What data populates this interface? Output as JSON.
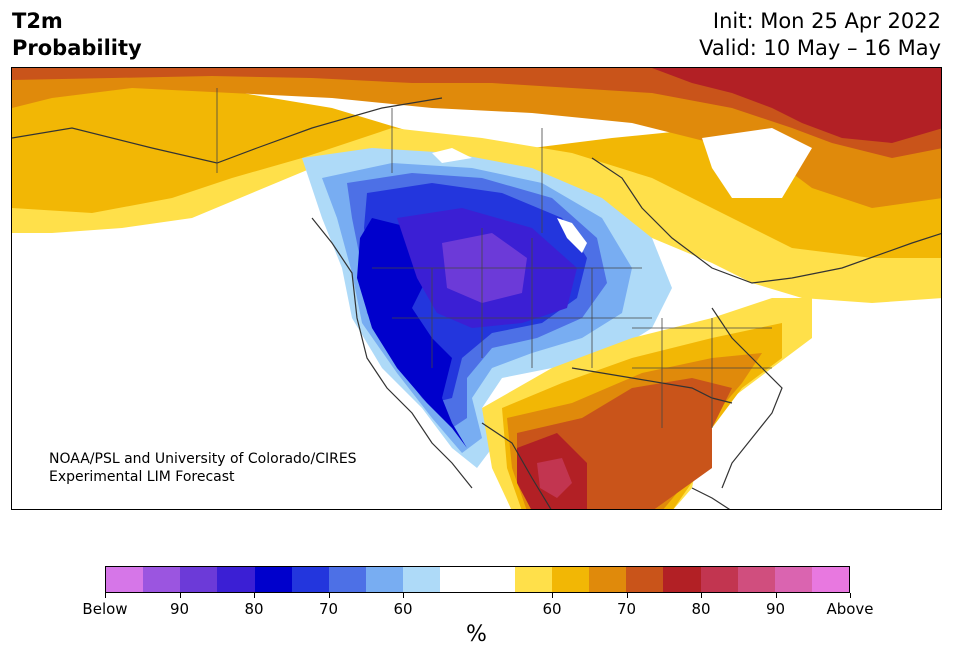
{
  "header": {
    "title_line1": "T2m",
    "title_line2": "Probability",
    "init": "Init: Mon 25 Apr 2022",
    "valid": "Valid: 10 May – 16 May"
  },
  "credit": {
    "line1": "NOAA/PSL and University of Colorado/CIRES",
    "line2": "Experimental LIM Forecast"
  },
  "colorbar": {
    "unit": "%",
    "colors": [
      "#d676e8",
      "#9b55e0",
      "#6c3ad8",
      "#3b1fd4",
      "#0000cc",
      "#2336dd",
      "#4d70e6",
      "#78adf2",
      "#aedaf8",
      "#ffffff",
      "#ffffff",
      "#ffe04a",
      "#f2b705",
      "#e08a0b",
      "#c9541a",
      "#b22025",
      "#c23550",
      "#d04e7e",
      "#da64b0",
      "#e878e0"
    ],
    "tick_labels": [
      "Below",
      "90",
      "80",
      "70",
      "60",
      "60",
      "70",
      "80",
      "90",
      "Above"
    ]
  },
  "map": {
    "colors": {
      "below_80": "#3b1fd4",
      "below_90": "#6c3ad8",
      "below_70": "#0000cc",
      "below_65": "#2336dd",
      "below_60": "#4d70e6",
      "below_55": "#78adf2",
      "below_50": "#aedaf8",
      "above_50": "#ffe04a",
      "above_60": "#f2b705",
      "above_65": "#e08a0b",
      "above_70": "#c9541a",
      "above_80": "#b22025",
      "above_85": "#c23550"
    }
  }
}
